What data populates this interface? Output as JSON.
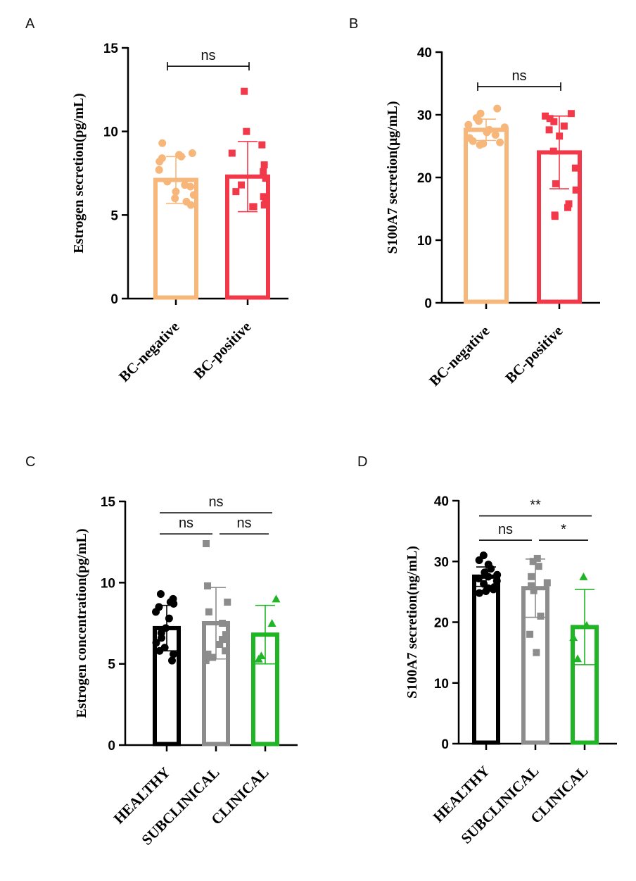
{
  "chart_data": [
    {
      "panel": "A",
      "type": "bar",
      "ylabel": "Estrogen secretion(pg/mL)",
      "ylim": [
        0,
        15
      ],
      "yticks": [
        0,
        5,
        10,
        15
      ],
      "categories": [
        "BC-negative",
        "BC-positive"
      ],
      "colors": [
        "#F7B77A",
        "#F2394A"
      ],
      "marker": [
        "circle",
        "square"
      ],
      "values": [
        7.1,
        7.3
      ],
      "sd": [
        1.4,
        2.1
      ],
      "points": [
        [
          9.3,
          8.7,
          8.6,
          8.5,
          8.4,
          8.2,
          7.7,
          7.0,
          6.8,
          6.7,
          6.4,
          6.2,
          6.0,
          5.8,
          5.6
        ],
        [
          12.4,
          10.0,
          9.2,
          8.7,
          8.0,
          7.6,
          7.2,
          6.8,
          6.4,
          6.1,
          5.8,
          5.6,
          5.5,
          5.5
        ]
      ],
      "comparisons": [
        {
          "from": 0,
          "to": 1,
          "label": "ns",
          "y": 13.9
        }
      ]
    },
    {
      "panel": "B",
      "type": "bar",
      "ylabel": "S100A7 secretion(μg/mL)",
      "ylim": [
        0,
        40
      ],
      "yticks": [
        0,
        10,
        20,
        30,
        40
      ],
      "categories": [
        "BC-negative",
        "BC-positive"
      ],
      "colors": [
        "#F7B77A",
        "#F2394A"
      ],
      "marker": [
        "circle",
        "square"
      ],
      "values": [
        27.6,
        24.0
      ],
      "sd": [
        1.7,
        5.8
      ],
      "points": [
        [
          31.0,
          30.2,
          29.5,
          29.0,
          28.4,
          28.0,
          27.6,
          27.2,
          26.8,
          26.3,
          25.8,
          25.4,
          25.2,
          25.6
        ],
        [
          30.2,
          29.8,
          29.4,
          28.9,
          28.2,
          27.6,
          26.6,
          24.2,
          21.5,
          19.0,
          18.0,
          15.8,
          15.2,
          14.0,
          13.8
        ]
      ],
      "comparisons": [
        {
          "from": 0,
          "to": 1,
          "label": "ns",
          "y": 34.5
        }
      ]
    },
    {
      "panel": "C",
      "type": "bar",
      "ylabel": "Estrogen concentration(pg/mL)",
      "ylim": [
        0,
        15
      ],
      "yticks": [
        0,
        5,
        10,
        15
      ],
      "categories": [
        "HEALTHY",
        "SUBCLINICAL",
        "CLINICAL"
      ],
      "colors": [
        "#000000",
        "#8C8C8C",
        "#1FB524"
      ],
      "marker": [
        "circle",
        "square",
        "triangle"
      ],
      "values": [
        7.2,
        7.5,
        6.8
      ],
      "sd": [
        1.4,
        2.2,
        1.8
      ],
      "points": [
        [
          9.3,
          9.0,
          8.8,
          8.7,
          8.5,
          8.2,
          7.8,
          7.2,
          6.9,
          6.6,
          6.3,
          6.0,
          5.8,
          5.6,
          5.2
        ],
        [
          12.4,
          9.8,
          8.8,
          8.2,
          7.5,
          6.8,
          6.5,
          6.2,
          5.8,
          5.6,
          5.4,
          5.2
        ],
        [
          9.0,
          7.5,
          5.5,
          5.3
        ]
      ],
      "comparisons": [
        {
          "from": 0,
          "to": 1,
          "label": "ns",
          "y": 13.0
        },
        {
          "from": 1,
          "to": 2,
          "label": "ns",
          "y": 13.0
        },
        {
          "from": 0,
          "to": 2,
          "label": "ns",
          "y": 14.3
        }
      ]
    },
    {
      "panel": "D",
      "type": "bar",
      "ylabel": "S100A7 secretion(ng/mL)",
      "ylim": [
        0,
        40
      ],
      "yticks": [
        0,
        10,
        20,
        30,
        40
      ],
      "categories": [
        "HEALTHY",
        "SUBCLINICAL",
        "CLINICAL"
      ],
      "colors": [
        "#000000",
        "#8C8C8C",
        "#1FB524"
      ],
      "marker": [
        "circle",
        "square",
        "triangle"
      ],
      "values": [
        27.5,
        25.6,
        19.2
      ],
      "sd": [
        1.6,
        4.8,
        6.2
      ],
      "points": [
        [
          31.0,
          30.2,
          29.5,
          28.8,
          28.2,
          27.8,
          27.5,
          27.2,
          26.8,
          26.3,
          25.8,
          25.4,
          25.1,
          24.8,
          25.6
        ],
        [
          30.5,
          30.0,
          29.2,
          27.5,
          26.5,
          26.0,
          25.2,
          21.0,
          18.0,
          15.0
        ],
        [
          27.5,
          19.5,
          17.5,
          14.0
        ]
      ],
      "comparisons": [
        {
          "from": 0,
          "to": 1,
          "label": "ns",
          "y": 33.5
        },
        {
          "from": 1,
          "to": 2,
          "label": "*",
          "y": 33.5
        },
        {
          "from": 0,
          "to": 2,
          "label": "**",
          "y": 37.5
        }
      ]
    }
  ]
}
